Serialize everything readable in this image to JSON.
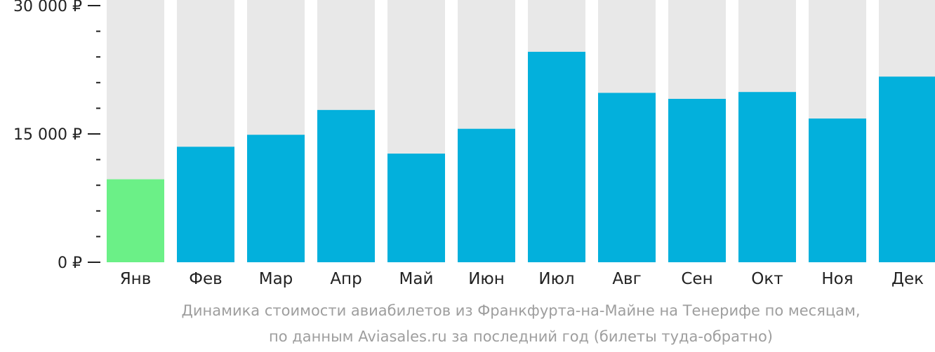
{
  "chart_data": {
    "type": "bar",
    "categories": [
      "Янв",
      "Фев",
      "Мар",
      "Апр",
      "Май",
      "Июн",
      "Июл",
      "Авг",
      "Сен",
      "Окт",
      "Ноя",
      "Дек"
    ],
    "values": [
      9700,
      13500,
      14900,
      17800,
      12700,
      15600,
      24600,
      19800,
      19100,
      19900,
      16800,
      21700
    ],
    "ylim": [
      0,
      30000
    ],
    "y_ticks": [
      {
        "value": 0,
        "label": "0 ₽"
      },
      {
        "value": 15000,
        "label": "15 000 ₽"
      },
      {
        "value": 30000,
        "label": "30 000 ₽"
      }
    ],
    "minor_tick_step": 3000,
    "cheapest_index": 0,
    "colors": {
      "bar": "#03b0dc",
      "cheapest_bar": "#6bf087",
      "background_bar": "#e8e8e8",
      "axis_text": "#222222",
      "caption": "#9e9e9e"
    },
    "caption_line1": "Динамика стоимости авиабилетов из Франкфурта-на-Майне на Тенерифе по месяцам,",
    "caption_line2": "по данным Aviasales.ru за последний год (билеты туда-обратно)"
  }
}
